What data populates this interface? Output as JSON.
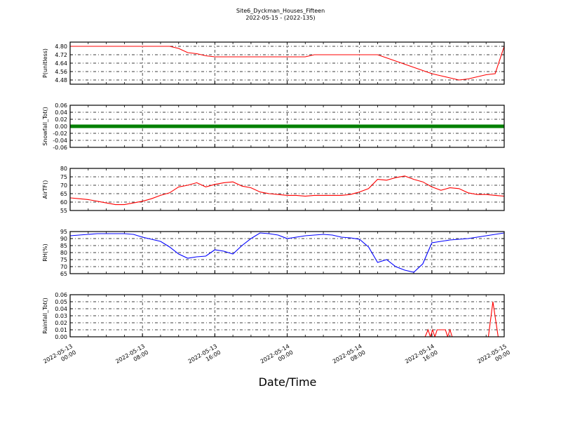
{
  "chart_data": {
    "type": "line",
    "title": "Site6_Dyckman_Houses_Fifteen",
    "subtitle": "2022-05-15 - (2022-135)",
    "xlabel": "Date/Time",
    "xlim": [
      "2022-05-13 00:00",
      "2022-05-15 00:00"
    ],
    "x_ticks": [
      {
        "t": "2022-05-13 00:00",
        "label": [
          "2022-05-13",
          "00:00"
        ]
      },
      {
        "t": "2022-05-13 08:00",
        "label": [
          "2022-05-13",
          "08:00"
        ]
      },
      {
        "t": "2022-05-13 16:00",
        "label": [
          "2022-05-13",
          "16:00"
        ]
      },
      {
        "t": "2022-05-14 00:00",
        "label": [
          "2022-05-14",
          "00:00"
        ]
      },
      {
        "t": "2022-05-14 08:00",
        "label": [
          "2022-05-14",
          "08:00"
        ]
      },
      {
        "t": "2022-05-14 16:00",
        "label": [
          "2022-05-14",
          "16:00"
        ]
      },
      {
        "t": "2022-05-15 00:00",
        "label": [
          "2022-05-15",
          "00:00"
        ]
      }
    ],
    "grid": true,
    "time": [
      "2022-05-13 00:00",
      "2022-05-13 01:00",
      "2022-05-13 02:00",
      "2022-05-13 03:00",
      "2022-05-13 04:00",
      "2022-05-13 05:00",
      "2022-05-13 06:00",
      "2022-05-13 07:00",
      "2022-05-13 08:00",
      "2022-05-13 09:00",
      "2022-05-13 10:00",
      "2022-05-13 11:00",
      "2022-05-13 12:00",
      "2022-05-13 13:00",
      "2022-05-13 14:00",
      "2022-05-13 15:00",
      "2022-05-13 16:00",
      "2022-05-13 17:00",
      "2022-05-13 18:00",
      "2022-05-13 19:00",
      "2022-05-13 20:00",
      "2022-05-13 21:00",
      "2022-05-13 22:00",
      "2022-05-13 23:00",
      "2022-05-14 00:00",
      "2022-05-14 01:00",
      "2022-05-14 02:00",
      "2022-05-14 03:00",
      "2022-05-14 04:00",
      "2022-05-14 05:00",
      "2022-05-14 06:00",
      "2022-05-14 07:00",
      "2022-05-14 08:00",
      "2022-05-14 09:00",
      "2022-05-14 10:00",
      "2022-05-14 11:00",
      "2022-05-14 12:00",
      "2022-05-14 13:00",
      "2022-05-14 14:00",
      "2022-05-14 15:00",
      "2022-05-14 16:00",
      "2022-05-14 17:00",
      "2022-05-14 18:00",
      "2022-05-14 19:00",
      "2022-05-14 20:00",
      "2022-05-14 21:00",
      "2022-05-14 22:00",
      "2022-05-14 23:00",
      "2022-05-15 00:00"
    ],
    "panels": [
      {
        "ylabel": "P(unitless)",
        "color": "#ff0000",
        "ylim": [
          4.44,
          4.84
        ],
        "yticks": [
          "4.48",
          "4.56",
          "4.64",
          "4.72",
          "4.80"
        ],
        "values": [
          4.8,
          4.8,
          4.8,
          4.8,
          4.8,
          4.8,
          4.8,
          4.8,
          4.8,
          4.8,
          4.8,
          4.8,
          4.78,
          4.74,
          4.73,
          4.71,
          4.7,
          4.7,
          4.7,
          4.7,
          4.7,
          4.7,
          4.7,
          4.7,
          4.7,
          4.7,
          4.7,
          4.72,
          4.72,
          4.72,
          4.72,
          4.72,
          4.72,
          4.72,
          4.72,
          4.69,
          4.66,
          4.63,
          4.6,
          4.57,
          4.54,
          4.52,
          4.5,
          4.48,
          4.49,
          4.51,
          4.53,
          4.54,
          4.8
        ]
      },
      {
        "ylabel": "Snowfall_Tot()",
        "color": "#008000",
        "ylim": [
          -0.06,
          0.06
        ],
        "markers": true,
        "yticks": [
          "-0.06",
          "-0.04",
          "-0.02",
          "0.00",
          "0.02",
          "0.04",
          "0.06"
        ],
        "values": [
          0,
          0,
          0,
          0,
          0,
          0,
          0,
          0,
          0,
          0,
          0,
          0,
          0,
          0,
          0,
          0,
          0,
          0,
          0,
          0,
          0,
          0,
          0,
          0,
          0,
          0,
          0,
          0,
          0,
          0,
          0,
          0,
          0,
          0,
          0,
          0,
          0,
          0,
          0,
          0,
          0,
          0,
          0,
          0,
          0,
          0,
          0,
          0,
          0
        ]
      },
      {
        "ylabel": "AirTF()",
        "color": "#ff0000",
        "ylim": [
          55,
          80
        ],
        "yticks": [
          "55",
          "60",
          "65",
          "70",
          "75",
          "80"
        ],
        "values": [
          62.5,
          62,
          61.5,
          60.5,
          59.5,
          58.5,
          58.5,
          59.5,
          60.5,
          62,
          64,
          65.5,
          69,
          70,
          71.5,
          69,
          70.5,
          71.5,
          72,
          69.5,
          68.5,
          66,
          65,
          64.5,
          64,
          64,
          63.5,
          64,
          64,
          64,
          64,
          64.5,
          66,
          68,
          73.5,
          73,
          74.5,
          75.5,
          73.5,
          72,
          69,
          67,
          68.5,
          68,
          65.5,
          64.5,
          64.5,
          64,
          63.5
        ]
      },
      {
        "ylabel": "RH(%)",
        "color": "#0000ff",
        "ylim": [
          65,
          95
        ],
        "yticks": [
          "65",
          "70",
          "75",
          "80",
          "85",
          "90",
          "95"
        ],
        "values": [
          92,
          92.5,
          93,
          93.5,
          93.5,
          93.5,
          93.5,
          93,
          91,
          89.5,
          88,
          84,
          79,
          76,
          77,
          77.5,
          82,
          81,
          79,
          85,
          90,
          94,
          93.5,
          92.5,
          90,
          91,
          92,
          92.5,
          93,
          92.5,
          91,
          90.5,
          89.5,
          84,
          73,
          75,
          70,
          67.5,
          66,
          72,
          87,
          88,
          89,
          89.5,
          90,
          91,
          92,
          93,
          94
        ]
      },
      {
        "ylabel": "Rainfall_Tot()",
        "color": "#ff0000",
        "ylim": [
          0,
          0.06
        ],
        "yticks": [
          "0.00",
          "0.01",
          "0.02",
          "0.03",
          "0.04",
          "0.05",
          "0.06"
        ],
        "points": [
          [
            "2022-05-13 00:00",
            0
          ],
          [
            "2022-05-14 15:15",
            0
          ],
          [
            "2022-05-14 15:35",
            0.01
          ],
          [
            "2022-05-14 15:50",
            0
          ],
          [
            "2022-05-14 16:05",
            0.01
          ],
          [
            "2022-05-14 16:20",
            0
          ],
          [
            "2022-05-14 16:35",
            0.01
          ],
          [
            "2022-05-14 17:30",
            0.01
          ],
          [
            "2022-05-14 17:45",
            0
          ],
          [
            "2022-05-14 18:00",
            0.01
          ],
          [
            "2022-05-14 18:15",
            0
          ],
          [
            "2022-05-14 22:15",
            0
          ],
          [
            "2022-05-14 22:45",
            0.05
          ],
          [
            "2022-05-14 23:20",
            0
          ],
          [
            "2022-05-15 00:00",
            0
          ]
        ]
      }
    ]
  }
}
